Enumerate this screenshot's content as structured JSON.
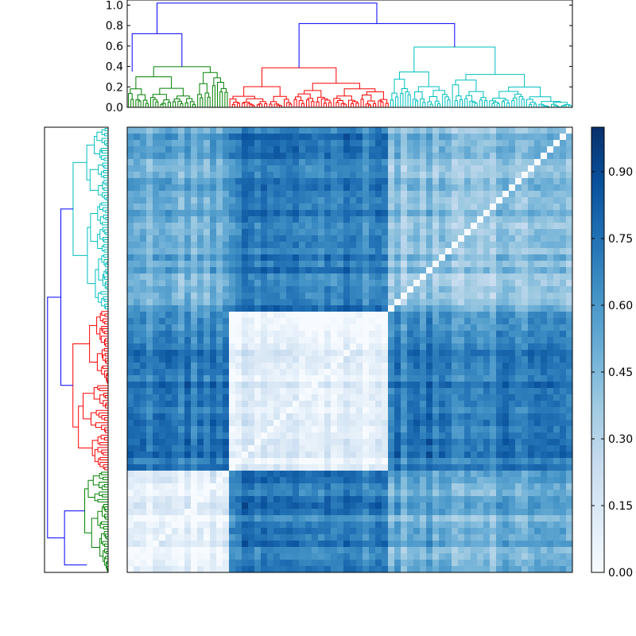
{
  "chart_data": [
    {
      "type": "dendrogram",
      "orientation": "top",
      "ylim": [
        0.0,
        1.05
      ],
      "ticks": [
        "0.0",
        "0.2",
        "0.4",
        "0.6",
        "0.8",
        "1.0"
      ],
      "tick_values": [
        0.0,
        0.2,
        0.4,
        0.6,
        0.8,
        1.0
      ],
      "clusters": [
        {
          "color": "#008000",
          "leaf_range": [
            0,
            0.23
          ],
          "merge_height": 0.6
        },
        {
          "color": "#ff0000",
          "leaf_range": [
            0.23,
            0.59
          ],
          "merge_height": 0.7
        },
        {
          "color": "#00bfbf",
          "leaf_range": [
            0.59,
            1.0
          ],
          "merge_height": 0.73
        }
      ],
      "links_color": "#0000ff",
      "root_height": 1.02
    },
    {
      "type": "dendrogram",
      "orientation": "left",
      "clusters": [
        {
          "color": "#00bfbf",
          "leaf_range": [
            0,
            0.41
          ]
        },
        {
          "color": "#ff0000",
          "leaf_range": [
            0.41,
            0.77
          ]
        },
        {
          "color": "#008000",
          "leaf_range": [
            0.77,
            1.0
          ]
        }
      ],
      "links_color": "#0000ff"
    },
    {
      "type": "heatmap",
      "colormap": "Blues",
      "vmin": 0.0,
      "vmax": 1.0,
      "block_bounds": [
        0,
        0.23,
        0.59,
        1.0
      ],
      "block_values": [
        [
          0.06,
          0.7,
          0.5
        ],
        [
          0.7,
          0.08,
          0.7
        ],
        [
          0.5,
          0.7,
          0.42
        ]
      ],
      "colorbar_ticks": [
        "0.00",
        "0.15",
        "0.30",
        "0.45",
        "0.60",
        "0.75",
        "0.90"
      ],
      "colorbar_tick_values": [
        0.0,
        0.15,
        0.3,
        0.45,
        0.6,
        0.75,
        0.9
      ]
    }
  ]
}
